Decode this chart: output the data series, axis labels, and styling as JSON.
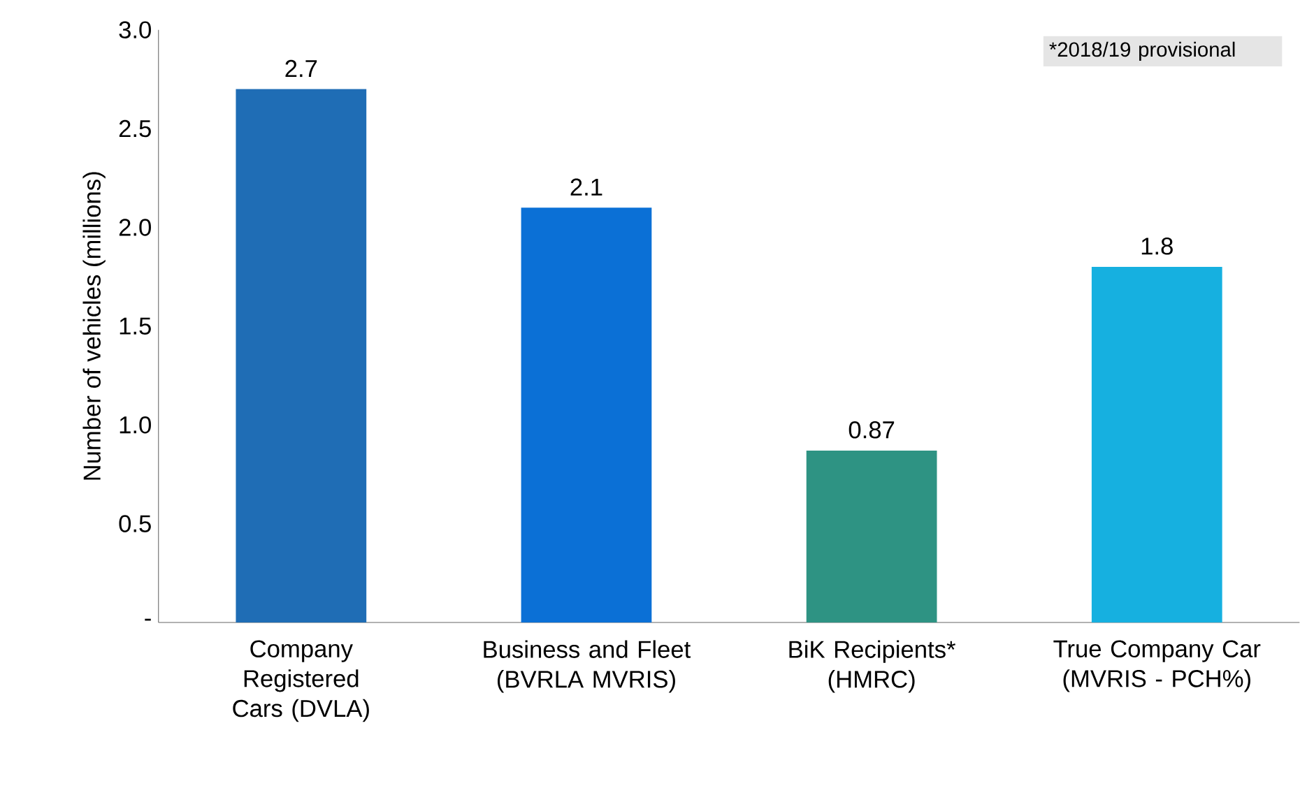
{
  "chart_data": {
    "type": "bar",
    "ylabel": "Number of vehicles (millions)",
    "categories": [
      "Company Registered Cars (DVLA)",
      "Business and Fleet (BVRLA MVRIS)",
      "BiK Recipients* (HMRC)",
      "True Company Car (MVRIS - PCH%)"
    ],
    "values": [
      2.7,
      2.1,
      0.87,
      1.8
    ],
    "colors": [
      "#1f6db5",
      "#0b70d6",
      "#2e9383",
      "#16b0e0"
    ],
    "ylim": [
      0,
      3.0
    ],
    "yticks": [
      {
        "value": 0,
        "label": "-"
      },
      {
        "value": 0.5,
        "label": "0.5"
      },
      {
        "value": 1.0,
        "label": "1.0"
      },
      {
        "value": 1.5,
        "label": "1.5"
      },
      {
        "value": 2.0,
        "label": "2.0"
      },
      {
        "value": 2.5,
        "label": "2.5"
      },
      {
        "value": 3.0,
        "label": "3.0"
      }
    ],
    "data_labels": true,
    "annotations": [
      "*2018/19 provisional"
    ]
  }
}
